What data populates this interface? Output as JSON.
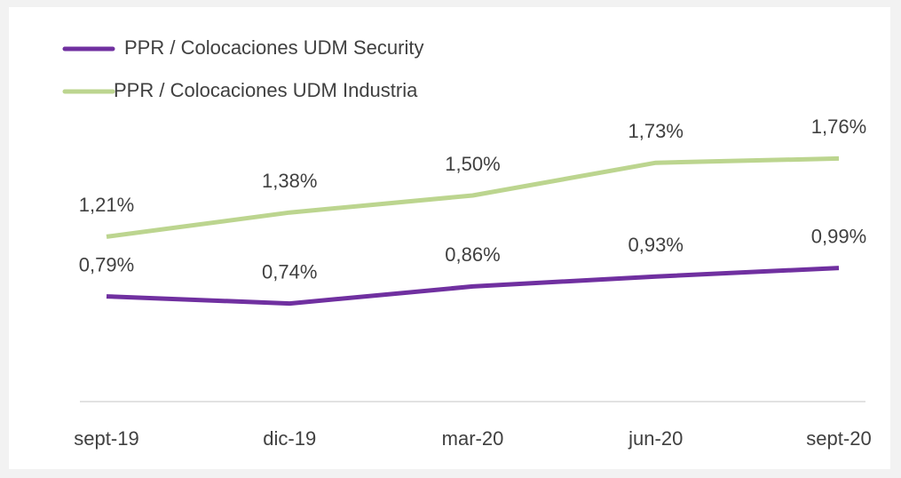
{
  "chart_data": {
    "type": "line",
    "categories": [
      "sept-19",
      "dic-19",
      "mar-20",
      "jun-20",
      "sept-20"
    ],
    "series": [
      {
        "name": "PPR / Colocaciones UDM Security",
        "color": "#7030a0",
        "values": [
          0.79,
          0.74,
          0.86,
          0.93,
          0.99
        ],
        "value_labels": [
          "0,79%",
          "0,74%",
          "0,86%",
          "0,93%",
          "0,99%"
        ]
      },
      {
        "name": "PPR / Colocaciones UDM Industria",
        "color": "#bcd58f",
        "values": [
          1.21,
          1.38,
          1.5,
          1.73,
          1.76
        ],
        "value_labels": [
          "1,21%",
          "1,38%",
          "1,50%",
          "1,73%",
          "1,76%"
        ]
      }
    ],
    "ylim": [
      0,
      2.0
    ],
    "legend": "top-left"
  }
}
